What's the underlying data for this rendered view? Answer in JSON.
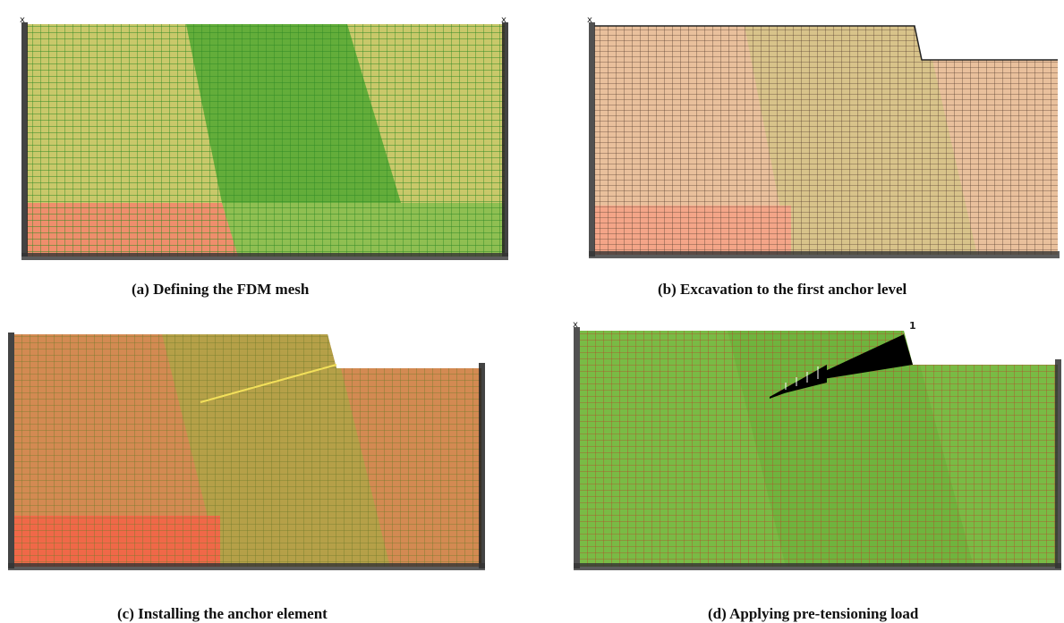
{
  "figure": {
    "panels": [
      {
        "id": "a",
        "caption": "(a) Defining the FDM mesh",
        "stage": "initial-mesh",
        "zones": [
          "soil-light",
          "soil-lower"
        ],
        "colors": {
          "upper_soil": "#d0cd6c",
          "lower_soil": "#f08a6a",
          "mesh_lines": "#2f8a25",
          "middle_band": "#6fb240"
        }
      },
      {
        "id": "b",
        "caption": "(b) Excavation to the first anchor level",
        "stage": "excavation-step-1",
        "colors": {
          "soil": "#e8bd98",
          "lower_soil": "#f5a586",
          "mesh_lines": "#4a3a2a"
        }
      },
      {
        "id": "c",
        "caption": "(c) Installing the anchor element",
        "stage": "anchor-installation",
        "colors": {
          "soil": "#d88a52",
          "middle_band": "#b9a04a",
          "lower_soil": "#f26a4a",
          "anchor": "#f0e050"
        }
      },
      {
        "id": "d",
        "caption": "(d) Applying pre-tensioning load",
        "stage": "pretension",
        "load_label": "1",
        "colors": {
          "soil": "#7ec24a",
          "mesh_lines": "#b13a20",
          "load_diagram": "#000000"
        }
      }
    ]
  }
}
